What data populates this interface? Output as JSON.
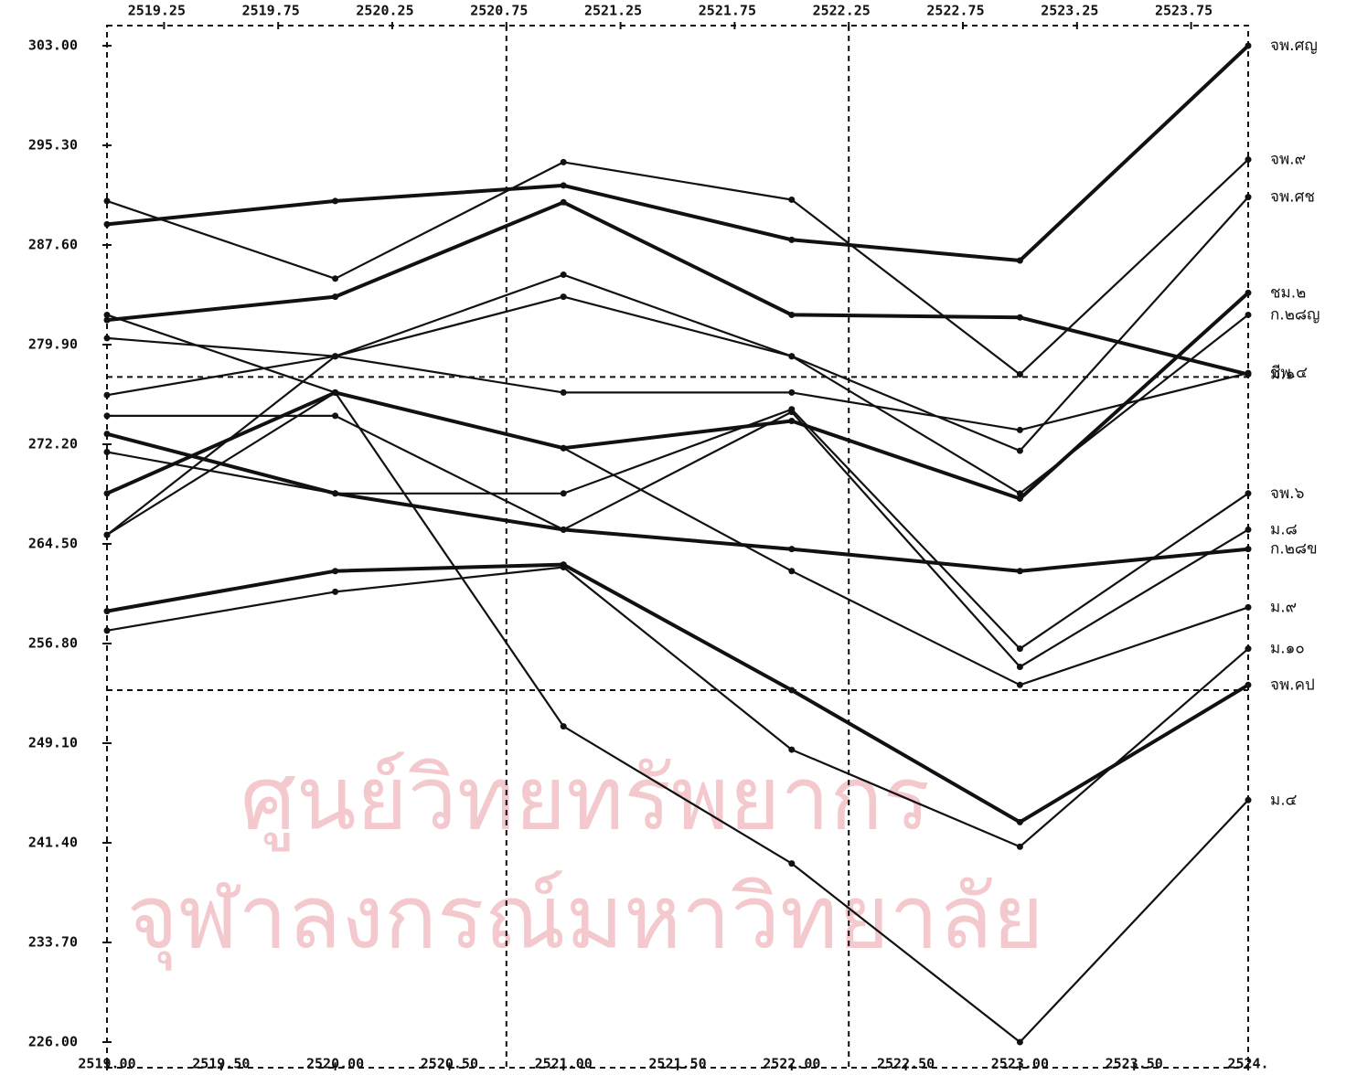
{
  "chart_data": {
    "type": "line",
    "watermark": [
      "ศูนย์วิทยทรัพยากร",
      "จุฬาลงกรณ์มหาวิทยาลัย"
    ],
    "x": [
      2519,
      2520,
      2521,
      2522,
      2523,
      2524
    ],
    "xlim": [
      2519,
      2524
    ],
    "xticks": [
      {
        "value": 2519,
        "label": "2519.00"
      },
      {
        "value": 2519.5,
        "label": "2519.50"
      },
      {
        "value": 2520,
        "label": "2520.00"
      },
      {
        "value": 2520.5,
        "label": "2520.50"
      },
      {
        "value": 2521,
        "label": "2521.00"
      },
      {
        "value": 2521.5,
        "label": "2521.50"
      },
      {
        "value": 2522,
        "label": "2522.00"
      },
      {
        "value": 2522.5,
        "label": "2522.50"
      },
      {
        "value": 2523,
        "label": "2523.00"
      },
      {
        "value": 2523.5,
        "label": "2523.50"
      },
      {
        "value": 2524,
        "label": "2524."
      }
    ],
    "x2ticks": [
      2519.25,
      2519.75,
      2520.25,
      2520.75,
      2521.25,
      2521.75,
      2522.25,
      2522.75,
      2523.25,
      2523.75
    ],
    "ylim": [
      226,
      303
    ],
    "yticks": [
      {
        "value": 226,
        "label": "226.00"
      },
      {
        "value": 233.7,
        "label": "233.70"
      },
      {
        "value": 241.4,
        "label": "241.40"
      },
      {
        "value": 249.1,
        "label": "249.10"
      },
      {
        "value": 256.8,
        "label": "256.80"
      },
      {
        "value": 264.5,
        "label": "264.50"
      },
      {
        "value": 272.2,
        "label": "272.20"
      },
      {
        "value": 279.9,
        "label": "279.90"
      },
      {
        "value": 287.6,
        "label": "287.60"
      },
      {
        "value": 295.3,
        "label": "295.30"
      },
      {
        "value": 303,
        "label": "303.00"
      }
    ],
    "reference_lines": {
      "x": [
        2520.75,
        2522.25
      ],
      "y": [
        277.4,
        253.2
      ]
    },
    "series": [
      {
        "name": "จพ.ศญ",
        "color": "#111111",
        "values": [
          289.2,
          291.0,
          292.2,
          288.0,
          286.4,
          303.0
        ]
      },
      {
        "name": "จพ.๙",
        "color": "#111111",
        "values": [
          291.0,
          285.0,
          294.0,
          291.1,
          277.6,
          294.2
        ]
      },
      {
        "name": "จพ.ศช",
        "color": "#111111",
        "values": [
          276.0,
          279.0,
          283.6,
          279.0,
          271.7,
          291.3
        ]
      },
      {
        "name": "ชม.๒",
        "color": "#111111",
        "values": [
          268.4,
          276.2,
          271.9,
          274.0,
          268.0,
          283.9
        ]
      },
      {
        "name": "ก.๒๘ญ",
        "color": "#111111",
        "values": [
          265.2,
          279.0,
          285.3,
          279.0,
          268.4,
          282.2
        ]
      },
      {
        "name": "ชีพ.๔",
        "color": "#111111",
        "values": [
          280.4,
          279.0,
          276.2,
          276.2,
          273.3,
          277.7
        ]
      },
      {
        "name": "ม.๑",
        "color": "#111111",
        "values": [
          281.8,
          283.6,
          290.9,
          282.2,
          282.0,
          277.6
        ]
      },
      {
        "name": "จพ.๖",
        "color": "#111111",
        "values": [
          271.6,
          268.4,
          268.4,
          274.9,
          256.4,
          268.4
        ]
      },
      {
        "name": "ม.๘",
        "color": "#111111",
        "values": [
          274.4,
          274.4,
          265.6,
          274.7,
          255.0,
          265.6
        ]
      },
      {
        "name": "ก.๒๘ข",
        "color": "#111111",
        "values": [
          273.0,
          268.4,
          265.6,
          264.1,
          262.4,
          264.1
        ]
      },
      {
        "name": "ม.๙",
        "color": "#111111",
        "values": [
          282.2,
          276.2,
          271.9,
          262.4,
          253.6,
          259.6
        ]
      },
      {
        "name": "ม.๑๐",
        "color": "#111111",
        "values": [
          257.8,
          260.8,
          262.7,
          248.6,
          241.1,
          256.4
        ]
      },
      {
        "name": "จพ.คป",
        "color": "#111111",
        "values": [
          259.3,
          262.4,
          262.9,
          253.2,
          243.0,
          253.6
        ]
      },
      {
        "name": "ม.๔",
        "color": "#111111",
        "values": [
          265.2,
          276.2,
          250.4,
          239.8,
          226.0,
          244.7
        ]
      }
    ]
  }
}
